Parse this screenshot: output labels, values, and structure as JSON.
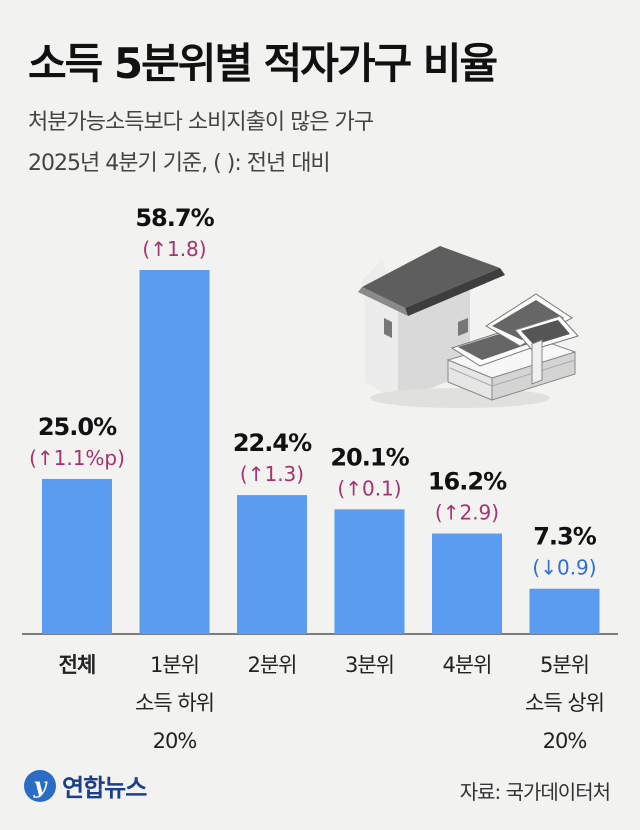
{
  "header": {
    "title": "소득 5분위별 적자가구 비율",
    "subtitle_line1": "처분가능소득보다 소비지출이 많은 가구",
    "subtitle_line2": "2025년 4분기 기준, (   ): 전년 대비"
  },
  "footer": {
    "logo_mark": "y",
    "logo_text": "연합뉴스",
    "source": "자료: 국가데이터처"
  },
  "colors": {
    "bar": "#5b9bf0",
    "up": "#a8326e",
    "down": "#2f6fd6",
    "value": "#111111"
  },
  "chart_data": {
    "type": "bar",
    "unit": "%",
    "ylim": [
      0,
      60
    ],
    "categories": [
      {
        "label": [
          "전체"
        ],
        "bold": true
      },
      {
        "label": [
          "1분위",
          "소득 하위",
          "20%"
        ]
      },
      {
        "label": [
          "2분위"
        ]
      },
      {
        "label": [
          "3분위"
        ]
      },
      {
        "label": [
          "4분위"
        ]
      },
      {
        "label": [
          "5분위",
          "소득 상위",
          "20%"
        ]
      }
    ],
    "values": [
      25.0,
      58.7,
      22.4,
      20.1,
      16.2,
      7.3
    ],
    "value_labels": [
      "25.0%",
      "58.7%",
      "22.4%",
      "20.1%",
      "16.2%",
      "7.3%"
    ],
    "changes": [
      {
        "text": "(↑1.1%p)",
        "direction": "up"
      },
      {
        "text": "(↑1.8)",
        "direction": "up"
      },
      {
        "text": "(↑1.3)",
        "direction": "up"
      },
      {
        "text": "(↑0.1)",
        "direction": "up"
      },
      {
        "text": "(↑2.9)",
        "direction": "up"
      },
      {
        "text": "(↓0.9)",
        "direction": "down"
      }
    ]
  }
}
